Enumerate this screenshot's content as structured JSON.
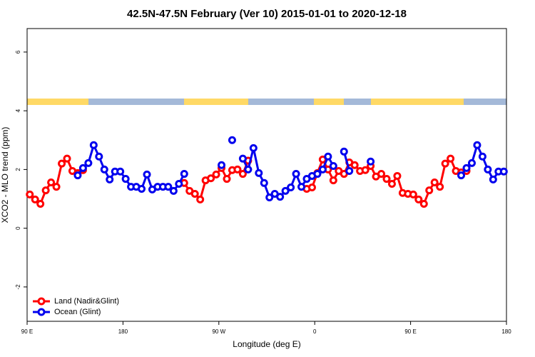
{
  "chart_data": {
    "type": "line",
    "title": "42.5N-47.5N February (Ver 10)   2015-01-01 to 2020-12-18",
    "x_label": "Longitude (deg E)",
    "y_label": "XCO2 - MLO trend (ppm)",
    "xlim": [
      90,
      540
    ],
    "ylim": [
      -3.17,
      6.8
    ],
    "xticks": [
      {
        "value": 90,
        "label": "90 E"
      },
      180,
      {
        "value": 270,
        "label": "90 W"
      },
      {
        "value": 360,
        "label": "0"
      },
      {
        "value": 450,
        "label": "90 E"
      },
      {
        "value": 540,
        "label": "180"
      }
    ],
    "yticks": [
      -2,
      0,
      2,
      4,
      6
    ],
    "legend": "bottom-left",
    "series": [
      {
        "name": "Land (Nadir&Glint)",
        "color": "#ff0000",
        "x": [
          92.5,
          97.5,
          102.5,
          107.5,
          112.5,
          117.5,
          122.5,
          127.5,
          132.5,
          137.5,
          142.5,
          null,
          237.5,
          242.5,
          247.5,
          252.5,
          257.5,
          262.5,
          267.5,
          272.5,
          277.5,
          282.5,
          287.5,
          292.5,
          297.5,
          null,
          352.5,
          357.5,
          362.5,
          367.5,
          372.5,
          377.5,
          382.5,
          387.5,
          392.5,
          397.5,
          402.5,
          407.5,
          412.5,
          417.5,
          422.5,
          427.5,
          432.5,
          437.5,
          442.5,
          447.5,
          452.5,
          457.5,
          462.5,
          467.5,
          472.5,
          477.5,
          482.5,
          487.5,
          492.5,
          497.5,
          502.5
        ],
        "values": [
          1.15,
          0.98,
          0.83,
          1.29,
          1.56,
          1.41,
          2.2,
          2.37,
          1.95,
          1.88,
          1.98,
          null,
          1.54,
          1.27,
          1.17,
          0.98,
          1.63,
          1.7,
          1.83,
          2.05,
          1.68,
          1.98,
          2.0,
          1.85,
          2.3,
          null,
          1.34,
          1.39,
          1.88,
          2.34,
          2.0,
          1.63,
          1.95,
          1.85,
          2.24,
          2.15,
          1.95,
          1.98,
          2.12,
          1.76,
          1.85,
          1.68,
          1.51,
          1.78,
          1.2,
          1.17,
          1.15,
          0.98,
          0.83,
          1.29,
          1.56,
          1.41,
          2.2,
          2.37,
          1.95,
          1.9,
          1.95
        ]
      },
      {
        "name": "Ocean (Glint)",
        "color": "#0000ee",
        "x": [
          137.5,
          142.5,
          147.5,
          152.5,
          157.5,
          162.5,
          167.5,
          172.5,
          177.5,
          182.5,
          187.5,
          192.5,
          197.5,
          202.5,
          207.5,
          212.5,
          217.5,
          222.5,
          227.5,
          232.5,
          237.5,
          null,
          272.5,
          null,
          282.5,
          null,
          292.5,
          297.5,
          302.5,
          307.5,
          312.5,
          317.5,
          322.5,
          327.5,
          332.5,
          337.5,
          342.5,
          347.5,
          352.5,
          357.5,
          362.5,
          367.5,
          372.5,
          377.5,
          null,
          387.5,
          392.5,
          null,
          412.5,
          null,
          497.5,
          502.5,
          507.5,
          512.5,
          517.5,
          522.5,
          527.5,
          532.5,
          537.5
        ],
        "values": [
          1.8,
          2.05,
          2.22,
          2.83,
          2.44,
          2.0,
          1.66,
          1.93,
          1.93,
          1.68,
          1.41,
          1.41,
          1.34,
          1.83,
          1.32,
          1.41,
          1.41,
          1.41,
          1.27,
          1.51,
          1.85,
          null,
          2.15,
          null,
          3.0,
          null,
          2.37,
          2.0,
          2.73,
          1.88,
          1.54,
          1.05,
          1.17,
          1.07,
          1.27,
          1.39,
          1.85,
          1.41,
          1.68,
          1.78,
          1.85,
          2.0,
          2.44,
          2.12,
          null,
          2.61,
          1.95,
          null,
          2.27,
          null,
          1.8,
          2.05,
          2.22,
          2.83,
          2.44,
          2.0,
          1.66,
          1.93,
          1.93
        ]
      }
    ]
  }
}
